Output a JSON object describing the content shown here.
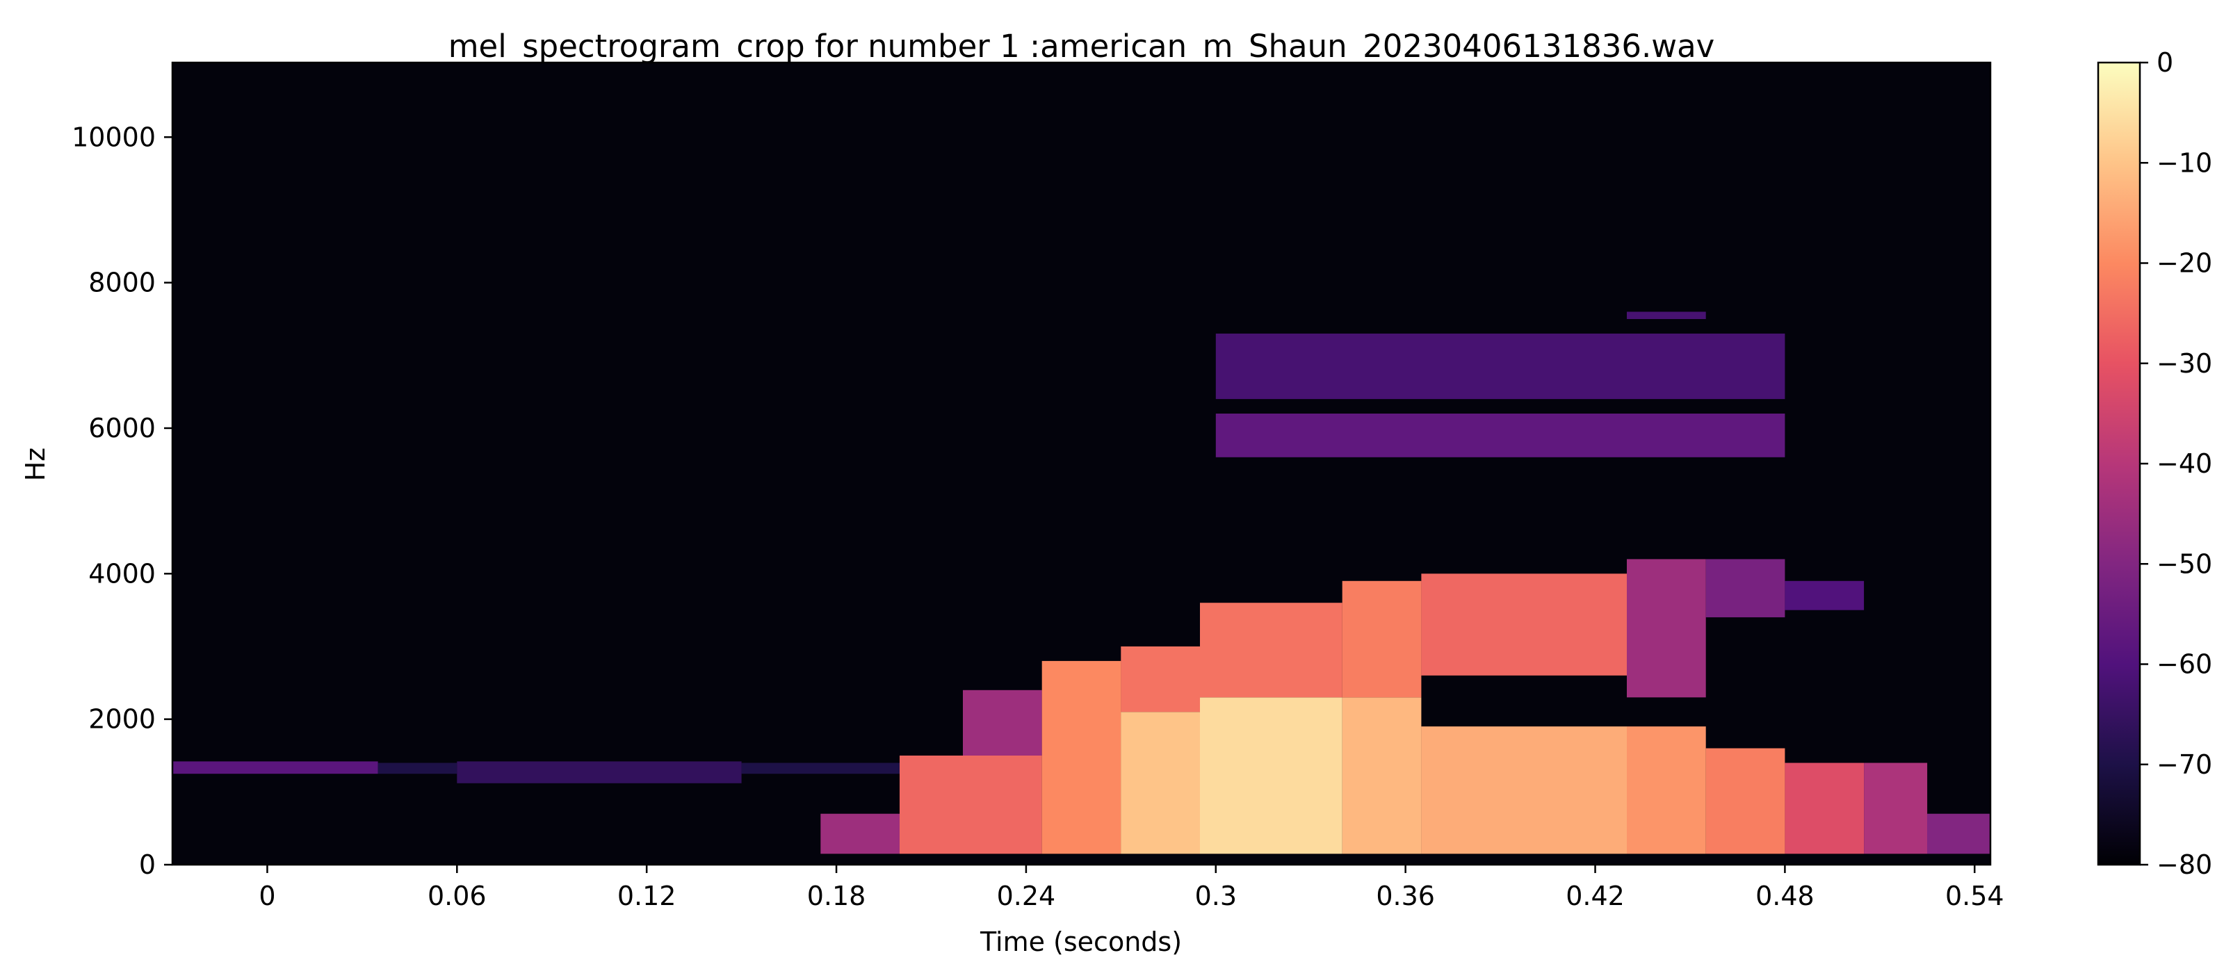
{
  "chart_data": {
    "type": "heatmap",
    "title": "mel_spectrogram_crop for number 1 :american_m_Shaun_20230406131836.wav",
    "xlabel": "Time (seconds)",
    "ylabel": "Hz",
    "x_ticks": [
      "0",
      "0.06",
      "0.12",
      "0.18",
      "0.24",
      "0.3",
      "0.36",
      "0.42",
      "0.48",
      "0.54"
    ],
    "x_tick_values": [
      0,
      0.06,
      0.12,
      0.18,
      0.24,
      0.3,
      0.36,
      0.42,
      0.48,
      0.54
    ],
    "y_ticks": [
      "0",
      "2000",
      "4000",
      "6000",
      "8000",
      "10000"
    ],
    "y_tick_values": [
      0,
      2000,
      4000,
      6000,
      8000,
      10000
    ],
    "xlim": [
      -0.03,
      0.545
    ],
    "ylim": [
      0,
      11025
    ],
    "colormap": "magma",
    "colorbar": {
      "ticks": [
        "0",
        "−10",
        "−20",
        "−30",
        "−40",
        "−50",
        "−60",
        "−70",
        "−80"
      ],
      "tick_values": [
        0,
        -10,
        -20,
        -30,
        -40,
        -50,
        -60,
        -70,
        -80
      ],
      "range": [
        -80,
        0
      ],
      "placement": "right"
    },
    "components": [
      {
        "t0": -0.03,
        "t1": 0.035,
        "f0": 1250,
        "f1": 1420,
        "db": -58
      },
      {
        "t0": 0.035,
        "t1": 0.06,
        "f0": 1250,
        "f1": 1400,
        "db": -70
      },
      {
        "t0": 0.06,
        "t1": 0.15,
        "f0": 1120,
        "f1": 1420,
        "db": -66
      },
      {
        "t0": 0.15,
        "t1": 0.2,
        "f0": 1250,
        "f1": 1400,
        "db": -70
      },
      {
        "t0": 0.175,
        "t1": 0.2,
        "f0": 150,
        "f1": 700,
        "db": -45
      },
      {
        "t0": 0.2,
        "t1": 0.245,
        "f0": 150,
        "f1": 1500,
        "db": -26
      },
      {
        "t0": 0.22,
        "t1": 0.245,
        "f0": 1500,
        "f1": 2400,
        "db": -45
      },
      {
        "t0": 0.245,
        "t1": 0.27,
        "f0": 150,
        "f1": 2800,
        "db": -20
      },
      {
        "t0": 0.27,
        "t1": 0.295,
        "f0": 150,
        "f1": 2100,
        "db": -10
      },
      {
        "t0": 0.27,
        "t1": 0.295,
        "f0": 2100,
        "f1": 3000,
        "db": -24
      },
      {
        "t0": 0.295,
        "t1": 0.34,
        "f0": 150,
        "f1": 2300,
        "db": -6
      },
      {
        "t0": 0.295,
        "t1": 0.34,
        "f0": 2300,
        "f1": 3600,
        "db": -24
      },
      {
        "t0": 0.34,
        "t1": 0.365,
        "f0": 150,
        "f1": 2300,
        "db": -12
      },
      {
        "t0": 0.34,
        "t1": 0.365,
        "f0": 2300,
        "f1": 3900,
        "db": -22
      },
      {
        "t0": 0.365,
        "t1": 0.43,
        "f0": 150,
        "f1": 1900,
        "db": -14
      },
      {
        "t0": 0.365,
        "t1": 0.43,
        "f0": 2600,
        "f1": 4000,
        "db": -26
      },
      {
        "t0": 0.43,
        "t1": 0.455,
        "f0": 150,
        "f1": 1900,
        "db": -18
      },
      {
        "t0": 0.43,
        "t1": 0.455,
        "f0": 2300,
        "f1": 4200,
        "db": -45
      },
      {
        "t0": 0.455,
        "t1": 0.48,
        "f0": 150,
        "f1": 1600,
        "db": -22
      },
      {
        "t0": 0.455,
        "t1": 0.48,
        "f0": 3400,
        "f1": 4200,
        "db": -52
      },
      {
        "t0": 0.48,
        "t1": 0.505,
        "f0": 150,
        "f1": 1400,
        "db": -32
      },
      {
        "t0": 0.48,
        "t1": 0.505,
        "f0": 3500,
        "f1": 3900,
        "db": -60
      },
      {
        "t0": 0.505,
        "t1": 0.525,
        "f0": 150,
        "f1": 1400,
        "db": -42
      },
      {
        "t0": 0.525,
        "t1": 0.545,
        "f0": 150,
        "f1": 700,
        "db": -50
      },
      {
        "t0": 0.3,
        "t1": 0.48,
        "f0": 5600,
        "f1": 6200,
        "db": -57
      },
      {
        "t0": 0.3,
        "t1": 0.48,
        "f0": 6400,
        "f1": 7300,
        "db": -62
      },
      {
        "t0": 0.43,
        "t1": 0.455,
        "f0": 7500,
        "f1": 7600,
        "db": -62
      }
    ]
  }
}
